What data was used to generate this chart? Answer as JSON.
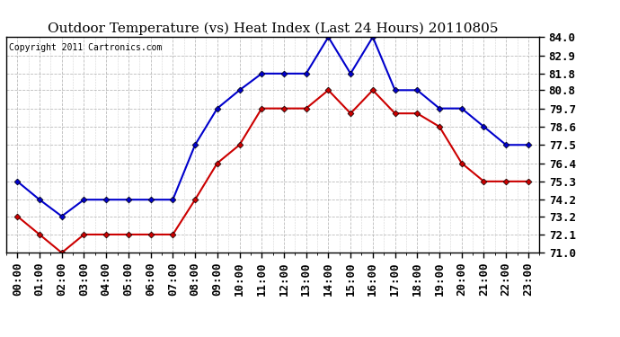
{
  "title": "Outdoor Temperature (vs) Heat Index (Last 24 Hours) 20110805",
  "copyright": "Copyright 2011 Cartronics.com",
  "hours": [
    "00:00",
    "01:00",
    "02:00",
    "03:00",
    "04:00",
    "05:00",
    "06:00",
    "07:00",
    "08:00",
    "09:00",
    "10:00",
    "11:00",
    "12:00",
    "13:00",
    "14:00",
    "15:00",
    "16:00",
    "17:00",
    "18:00",
    "19:00",
    "20:00",
    "21:00",
    "22:00",
    "23:00"
  ],
  "blue_temp": [
    75.3,
    74.2,
    73.2,
    74.2,
    74.2,
    74.2,
    74.2,
    74.2,
    77.5,
    79.7,
    80.8,
    81.8,
    81.8,
    81.8,
    84.0,
    81.8,
    84.0,
    80.8,
    80.8,
    79.7,
    79.7,
    78.6,
    77.5,
    77.5
  ],
  "red_temp": [
    73.2,
    72.1,
    71.0,
    72.1,
    72.1,
    72.1,
    72.1,
    72.1,
    74.2,
    76.4,
    77.5,
    79.7,
    79.7,
    79.7,
    80.8,
    79.4,
    80.8,
    79.4,
    79.4,
    78.6,
    76.4,
    75.3,
    75.3,
    75.3
  ],
  "ylim_min": 71.0,
  "ylim_max": 84.0,
  "yticks": [
    71.0,
    72.1,
    73.2,
    74.2,
    75.3,
    76.4,
    77.5,
    78.6,
    79.7,
    80.8,
    81.8,
    82.9,
    84.0
  ],
  "blue_color": "#0000cc",
  "red_color": "#cc0000",
  "bg_color": "#ffffff",
  "grid_color": "#aaaaaa",
  "title_fontsize": 11,
  "copyright_fontsize": 7,
  "tick_fontsize": 9
}
